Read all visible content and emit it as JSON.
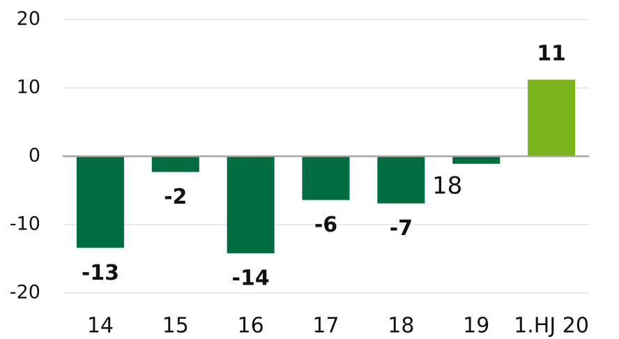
{
  "chart_data": {
    "type": "bar",
    "categories": [
      "14",
      "15",
      "16",
      "17",
      "18",
      "19",
      "1.HJ 20"
    ],
    "values": [
      -13.4,
      -2.3,
      -14.2,
      -6.4,
      -6.9,
      -1.1,
      11.2
    ],
    "value_labels": [
      "-13",
      "-2",
      "-14",
      "-6",
      "-7",
      null,
      "11"
    ],
    "colors": [
      "#006c3f",
      "#006c3f",
      "#006c3f",
      "#006c3f",
      "#006c3f",
      "#006c3f",
      "#7ab51d"
    ],
    "annotation": "18",
    "ylim": [
      -20,
      20
    ],
    "yticks": [
      -20,
      -10,
      0,
      10,
      20
    ],
    "grid": true
  }
}
